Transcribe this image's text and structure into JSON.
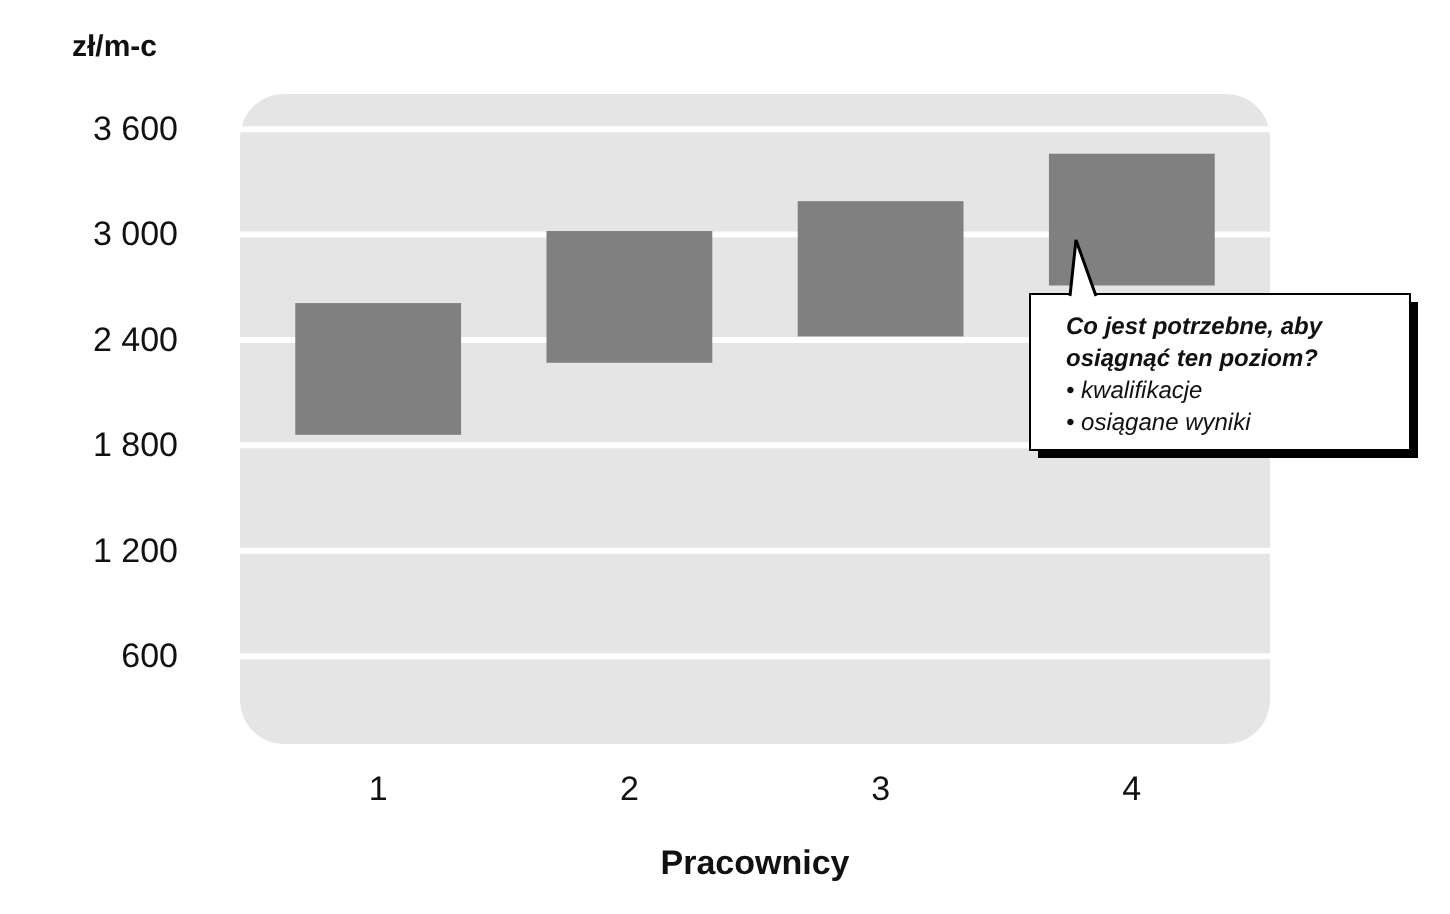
{
  "chart_data": {
    "type": "bar",
    "ylabel": "zł/m-c",
    "xlabel": "Pracownicy",
    "categories": [
      "1",
      "2",
      "3",
      "4"
    ],
    "base": [
      1860,
      2270,
      2420,
      2710
    ],
    "values": [
      750,
      750,
      770,
      750
    ],
    "color": "#808080",
    "ylim": [
      100,
      3800
    ],
    "yticks": [
      {
        "value": 600,
        "label": "600"
      },
      {
        "value": 1200,
        "label": "1 200"
      },
      {
        "value": 1800,
        "label": "1 800"
      },
      {
        "value": 2400,
        "label": "2 400"
      },
      {
        "value": 3000,
        "label": "3 000"
      },
      {
        "value": 3600,
        "label": "3 600"
      }
    ],
    "grid": "y",
    "annotations": [
      "Co jest potrzebne, aby\nosiągnąć ten poziom?\n• kwalifikacje\n• osiągane wyniki"
    ]
  }
}
